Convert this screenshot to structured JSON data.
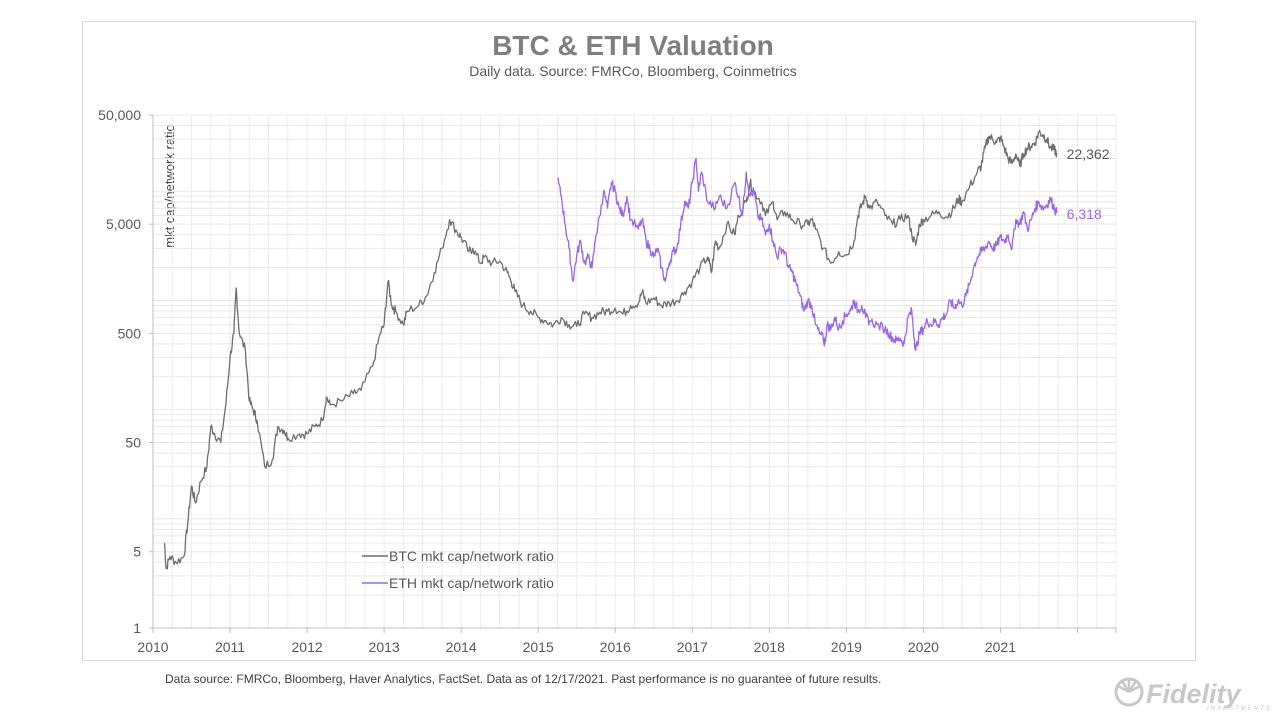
{
  "chart_data": {
    "type": "line",
    "title": "BTC & ETH Valuation",
    "subtitle": "Daily data.  Source: FMRCo, Bloomberg, Coinmetrics",
    "ylabel": "mkt cap/network ratio",
    "xlabel": "",
    "yscale": "log",
    "ylim": [
      1,
      50000
    ],
    "xlim": [
      2010,
      2022.5
    ],
    "x_ticks": [
      "2010",
      "2011",
      "2012",
      "2013",
      "2014",
      "2015",
      "2016",
      "2017",
      "2018",
      "2019",
      "2020",
      "2021"
    ],
    "y_ticks": [
      {
        "value": 50000,
        "label": "50,000"
      },
      {
        "value": 5000,
        "label": "5,000"
      },
      {
        "value": 500,
        "label": "500"
      },
      {
        "value": 50,
        "label": "50"
      },
      {
        "value": 5,
        "label": "5"
      },
      {
        "value": 1,
        "label": "1"
      }
    ],
    "grid": true,
    "legend_position": "bottom-left",
    "series": [
      {
        "name": "BTC mkt cap/network ratio",
        "color": "#6e6e6e",
        "end_label": "22,362",
        "points": [
          [
            2010.15,
            6
          ],
          [
            2010.17,
            3.5
          ],
          [
            2010.22,
            4.5
          ],
          [
            2010.3,
            4
          ],
          [
            2010.4,
            4.5
          ],
          [
            2010.45,
            9
          ],
          [
            2010.5,
            20
          ],
          [
            2010.55,
            14
          ],
          [
            2010.62,
            22
          ],
          [
            2010.7,
            30
          ],
          [
            2010.75,
            70
          ],
          [
            2010.8,
            60
          ],
          [
            2010.88,
            50
          ],
          [
            2010.95,
            120
          ],
          [
            2011.0,
            300
          ],
          [
            2011.05,
            500
          ],
          [
            2011.08,
            1300
          ],
          [
            2011.12,
            500
          ],
          [
            2011.2,
            350
          ],
          [
            2011.25,
            120
          ],
          [
            2011.3,
            100
          ],
          [
            2011.35,
            80
          ],
          [
            2011.45,
            30
          ],
          [
            2011.55,
            35
          ],
          [
            2011.62,
            70
          ],
          [
            2011.7,
            65
          ],
          [
            2011.75,
            55
          ],
          [
            2011.9,
            60
          ],
          [
            2012.0,
            60
          ],
          [
            2012.1,
            70
          ],
          [
            2012.2,
            80
          ],
          [
            2012.25,
            130
          ],
          [
            2012.3,
            110
          ],
          [
            2012.45,
            120
          ],
          [
            2012.6,
            140
          ],
          [
            2012.7,
            150
          ],
          [
            2012.85,
            250
          ],
          [
            2012.95,
            500
          ],
          [
            2013.0,
            600
          ],
          [
            2013.05,
            1500
          ],
          [
            2013.1,
            900
          ],
          [
            2013.15,
            800
          ],
          [
            2013.25,
            600
          ],
          [
            2013.3,
            800
          ],
          [
            2013.45,
            900
          ],
          [
            2013.55,
            1100
          ],
          [
            2013.65,
            1800
          ],
          [
            2013.75,
            3000
          ],
          [
            2013.85,
            5500
          ],
          [
            2013.95,
            4200
          ],
          [
            2014.0,
            3800
          ],
          [
            2014.1,
            2800
          ],
          [
            2014.15,
            3000
          ],
          [
            2014.25,
            2200
          ],
          [
            2014.3,
            2500
          ],
          [
            2014.4,
            2200
          ],
          [
            2014.5,
            2300
          ],
          [
            2014.6,
            1800
          ],
          [
            2014.65,
            1500
          ],
          [
            2014.7,
            1200
          ],
          [
            2014.8,
            900
          ],
          [
            2014.9,
            800
          ],
          [
            2015.0,
            700
          ],
          [
            2015.1,
            650
          ],
          [
            2015.2,
            600
          ],
          [
            2015.3,
            700
          ],
          [
            2015.4,
            600
          ],
          [
            2015.5,
            580
          ],
          [
            2015.6,
            750
          ],
          [
            2015.7,
            700
          ],
          [
            2015.8,
            780
          ],
          [
            2015.9,
            800
          ],
          [
            2016.0,
            850
          ],
          [
            2016.1,
            750
          ],
          [
            2016.2,
            900
          ],
          [
            2016.3,
            950
          ],
          [
            2016.35,
            1200
          ],
          [
            2016.4,
            950
          ],
          [
            2016.5,
            1050
          ],
          [
            2016.6,
            900
          ],
          [
            2016.7,
            950
          ],
          [
            2016.8,
            1000
          ],
          [
            2016.9,
            1200
          ],
          [
            2017.0,
            1500
          ],
          [
            2017.1,
            2000
          ],
          [
            2017.2,
            2500
          ],
          [
            2017.25,
            1800
          ],
          [
            2017.3,
            3500
          ],
          [
            2017.35,
            3000
          ],
          [
            2017.45,
            5000
          ],
          [
            2017.55,
            4000
          ],
          [
            2017.6,
            6000
          ],
          [
            2017.7,
            8000
          ],
          [
            2017.75,
            12000
          ],
          [
            2017.8,
            10000
          ],
          [
            2017.9,
            8000
          ],
          [
            2017.95,
            6000
          ],
          [
            2018.05,
            8000
          ],
          [
            2018.1,
            5500
          ],
          [
            2018.2,
            6500
          ],
          [
            2018.3,
            5500
          ],
          [
            2018.4,
            5000
          ],
          [
            2018.5,
            5000
          ],
          [
            2018.55,
            5500
          ],
          [
            2018.6,
            4500
          ],
          [
            2018.7,
            3000
          ],
          [
            2018.8,
            2200
          ],
          [
            2018.9,
            2800
          ],
          [
            2019.0,
            2600
          ],
          [
            2019.1,
            3500
          ],
          [
            2019.15,
            6000
          ],
          [
            2019.2,
            7500
          ],
          [
            2019.25,
            9000
          ],
          [
            2019.3,
            7000
          ],
          [
            2019.4,
            8000
          ],
          [
            2019.5,
            6000
          ],
          [
            2019.6,
            5000
          ],
          [
            2019.7,
            5500
          ],
          [
            2019.8,
            6000
          ],
          [
            2019.85,
            4000
          ],
          [
            2019.9,
            3200
          ],
          [
            2019.95,
            5000
          ],
          [
            2020.0,
            5500
          ],
          [
            2020.1,
            6000
          ],
          [
            2020.2,
            6500
          ],
          [
            2020.3,
            5800
          ],
          [
            2020.4,
            7000
          ],
          [
            2020.45,
            8500
          ],
          [
            2020.5,
            8000
          ],
          [
            2020.6,
            11000
          ],
          [
            2020.7,
            15000
          ],
          [
            2020.75,
            17000
          ],
          [
            2020.8,
            25000
          ],
          [
            2020.85,
            32000
          ],
          [
            2020.9,
            30000
          ],
          [
            2020.95,
            28000
          ],
          [
            2021.0,
            31000
          ],
          [
            2021.05,
            25000
          ],
          [
            2021.1,
            20000
          ],
          [
            2021.15,
            18000
          ],
          [
            2021.2,
            22000
          ],
          [
            2021.25,
            17000
          ],
          [
            2021.3,
            22000
          ],
          [
            2021.35,
            25000
          ],
          [
            2021.4,
            26000
          ],
          [
            2021.45,
            28000
          ],
          [
            2021.5,
            35000
          ],
          [
            2021.55,
            33000
          ],
          [
            2021.6,
            30000
          ],
          [
            2021.65,
            25000
          ],
          [
            2021.7,
            24000
          ],
          [
            2021.73,
            22362
          ]
        ]
      },
      {
        "name": "ETH mkt cap/network ratio",
        "color": "#9966e6",
        "end_label": "6,318",
        "points": [
          [
            2015.25,
            13000
          ],
          [
            2015.3,
            9000
          ],
          [
            2015.35,
            5000
          ],
          [
            2015.4,
            3000
          ],
          [
            2015.45,
            1500
          ],
          [
            2015.5,
            2600
          ],
          [
            2015.55,
            3500
          ],
          [
            2015.6,
            2200
          ],
          [
            2015.65,
            2500
          ],
          [
            2015.7,
            2000
          ],
          [
            2015.75,
            4000
          ],
          [
            2015.8,
            6000
          ],
          [
            2015.85,
            10000
          ],
          [
            2015.9,
            7000
          ],
          [
            2015.95,
            12000
          ],
          [
            2016.0,
            10000
          ],
          [
            2016.05,
            7000
          ],
          [
            2016.1,
            6000
          ],
          [
            2016.15,
            9000
          ],
          [
            2016.2,
            5500
          ],
          [
            2016.3,
            4500
          ],
          [
            2016.35,
            5500
          ],
          [
            2016.4,
            3500
          ],
          [
            2016.45,
            3000
          ],
          [
            2016.5,
            2500
          ],
          [
            2016.55,
            3000
          ],
          [
            2016.6,
            2000
          ],
          [
            2016.65,
            1500
          ],
          [
            2016.7,
            2200
          ],
          [
            2016.75,
            2800
          ],
          [
            2016.8,
            3000
          ],
          [
            2016.85,
            5000
          ],
          [
            2016.9,
            8000
          ],
          [
            2016.95,
            7000
          ],
          [
            2017.0,
            12000
          ],
          [
            2017.05,
            20000
          ],
          [
            2017.08,
            10000
          ],
          [
            2017.12,
            15000
          ],
          [
            2017.2,
            8000
          ],
          [
            2017.3,
            7000
          ],
          [
            2017.35,
            9000
          ],
          [
            2017.45,
            7000
          ],
          [
            2017.55,
            12000
          ],
          [
            2017.6,
            9000
          ],
          [
            2017.65,
            6000
          ],
          [
            2017.7,
            15000
          ],
          [
            2017.75,
            9000
          ],
          [
            2017.8,
            10000
          ],
          [
            2017.85,
            6000
          ],
          [
            2017.9,
            5500
          ],
          [
            2017.95,
            4000
          ],
          [
            2018.0,
            5000
          ],
          [
            2018.05,
            3500
          ],
          [
            2018.1,
            2500
          ],
          [
            2018.15,
            3000
          ],
          [
            2018.2,
            2800
          ],
          [
            2018.25,
            2000
          ],
          [
            2018.3,
            1800
          ],
          [
            2018.35,
            1400
          ],
          [
            2018.4,
            1100
          ],
          [
            2018.45,
            800
          ],
          [
            2018.5,
            1000
          ],
          [
            2018.55,
            900
          ],
          [
            2018.6,
            600
          ],
          [
            2018.65,
            500
          ],
          [
            2018.7,
            450
          ],
          [
            2018.72,
            400
          ],
          [
            2018.75,
            600
          ],
          [
            2018.8,
            550
          ],
          [
            2018.85,
            700
          ],
          [
            2018.9,
            550
          ],
          [
            2018.95,
            650
          ],
          [
            2019.0,
            750
          ],
          [
            2019.05,
            800
          ],
          [
            2019.1,
            1000
          ],
          [
            2019.15,
            800
          ],
          [
            2019.2,
            900
          ],
          [
            2019.25,
            700
          ],
          [
            2019.3,
            650
          ],
          [
            2019.4,
            600
          ],
          [
            2019.5,
            550
          ],
          [
            2019.55,
            500
          ],
          [
            2019.6,
            450
          ],
          [
            2019.65,
            430
          ],
          [
            2019.7,
            450
          ],
          [
            2019.75,
            400
          ],
          [
            2019.8,
            700
          ],
          [
            2019.85,
            800
          ],
          [
            2019.88,
            450
          ],
          [
            2019.9,
            350
          ],
          [
            2019.95,
            500
          ],
          [
            2020.0,
            550
          ],
          [
            2020.05,
            650
          ],
          [
            2020.1,
            600
          ],
          [
            2020.15,
            650
          ],
          [
            2020.2,
            600
          ],
          [
            2020.25,
            700
          ],
          [
            2020.3,
            750
          ],
          [
            2020.35,
            1000
          ],
          [
            2020.4,
            850
          ],
          [
            2020.45,
            1000
          ],
          [
            2020.5,
            900
          ],
          [
            2020.55,
            1100
          ],
          [
            2020.6,
            1400
          ],
          [
            2020.65,
            2000
          ],
          [
            2020.7,
            2500
          ],
          [
            2020.75,
            2800
          ],
          [
            2020.8,
            3000
          ],
          [
            2020.85,
            3500
          ],
          [
            2020.9,
            3000
          ],
          [
            2020.95,
            3200
          ],
          [
            2021.0,
            3800
          ],
          [
            2021.05,
            3500
          ],
          [
            2021.1,
            4000
          ],
          [
            2021.15,
            3000
          ],
          [
            2021.2,
            5500
          ],
          [
            2021.25,
            5000
          ],
          [
            2021.3,
            6500
          ],
          [
            2021.35,
            4500
          ],
          [
            2021.4,
            5500
          ],
          [
            2021.45,
            7000
          ],
          [
            2021.5,
            8000
          ],
          [
            2021.55,
            7000
          ],
          [
            2021.6,
            7500
          ],
          [
            2021.65,
            8500
          ],
          [
            2021.7,
            7000
          ],
          [
            2021.73,
            6318
          ]
        ]
      }
    ]
  },
  "footer": {
    "note": "Data source: FMRCo, Bloomberg, Haver Analytics, FactSet. Data as of 12/17/2021. Past performance is no guarantee of future results."
  },
  "brand": {
    "name": "Fidelity",
    "tagline": "INVESTMENTS",
    "color": "#c8c8c8"
  }
}
